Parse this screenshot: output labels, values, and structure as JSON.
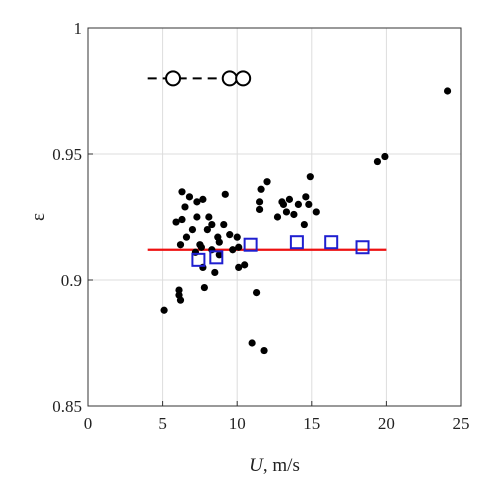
{
  "chart_data": {
    "type": "scatter",
    "title": "",
    "xlabel_var": "U",
    "xlabel_unit": ", m/s",
    "ylabel": "ε",
    "xlim": [
      0,
      25
    ],
    "ylim": [
      0.85,
      1.0
    ],
    "x_ticks": [
      0,
      5,
      10,
      15,
      20,
      25
    ],
    "y_ticks": [
      0.85,
      0.9,
      0.95,
      1
    ],
    "x_tick_labels": [
      "0",
      "5",
      "10",
      "15",
      "20",
      "25"
    ],
    "y_tick_labels": [
      "0.85",
      "0.9",
      "0.95",
      "1"
    ],
    "grid": true,
    "colors": {
      "dots": "#000000",
      "squares": "#1f1fd0",
      "fit_line": "#ee1111",
      "grid": "#dddddd",
      "axes": "#333333"
    },
    "series": [
      {
        "kind": "dots",
        "points": [
          [
            5.1,
            0.888
          ],
          [
            5.9,
            0.923
          ],
          [
            6.1,
            0.896
          ],
          [
            6.1,
            0.894
          ],
          [
            6.2,
            0.892
          ],
          [
            6.2,
            0.914
          ],
          [
            6.3,
            0.935
          ],
          [
            6.3,
            0.924
          ],
          [
            6.5,
            0.929
          ],
          [
            6.6,
            0.917
          ],
          [
            6.8,
            0.933
          ],
          [
            7.0,
            0.92
          ],
          [
            7.2,
            0.911
          ],
          [
            7.3,
            0.931
          ],
          [
            7.3,
            0.925
          ],
          [
            7.5,
            0.914
          ],
          [
            7.6,
            0.913
          ],
          [
            7.7,
            0.932
          ],
          [
            7.7,
            0.905
          ],
          [
            7.8,
            0.897
          ],
          [
            8.0,
            0.92
          ],
          [
            8.1,
            0.925
          ],
          [
            8.3,
            0.912
          ],
          [
            8.3,
            0.922
          ],
          [
            8.5,
            0.903
          ],
          [
            8.7,
            0.917
          ],
          [
            8.8,
            0.915
          ],
          [
            8.8,
            0.91
          ],
          [
            9.1,
            0.922
          ],
          [
            9.2,
            0.934
          ],
          [
            9.5,
            0.918
          ],
          [
            9.7,
            0.912
          ],
          [
            10.0,
            0.917
          ],
          [
            10.1,
            0.913
          ],
          [
            10.1,
            0.905
          ],
          [
            10.5,
            0.906
          ],
          [
            11.0,
            0.875
          ],
          [
            11.3,
            0.895
          ],
          [
            11.5,
            0.931
          ],
          [
            11.5,
            0.928
          ],
          [
            11.6,
            0.936
          ],
          [
            11.8,
            0.872
          ],
          [
            12.0,
            0.939
          ],
          [
            12.7,
            0.925
          ],
          [
            13.0,
            0.931
          ],
          [
            13.1,
            0.93
          ],
          [
            13.3,
            0.927
          ],
          [
            13.5,
            0.932
          ],
          [
            13.8,
            0.926
          ],
          [
            14.1,
            0.93
          ],
          [
            14.5,
            0.922
          ],
          [
            14.6,
            0.933
          ],
          [
            14.8,
            0.93
          ],
          [
            14.9,
            0.941
          ],
          [
            15.3,
            0.927
          ],
          [
            19.4,
            0.947
          ],
          [
            19.9,
            0.949
          ],
          [
            24.1,
            0.975
          ]
        ]
      },
      {
        "kind": "squares",
        "points": [
          [
            7.4,
            0.908
          ],
          [
            8.6,
            0.909
          ],
          [
            10.9,
            0.914
          ],
          [
            14.0,
            0.915
          ],
          [
            16.3,
            0.915
          ],
          [
            18.4,
            0.913
          ]
        ]
      },
      {
        "kind": "fit_line",
        "points": [
          [
            4.0,
            0.912
          ],
          [
            20.0,
            0.912
          ]
        ]
      },
      {
        "kind": "legend_marker",
        "dashed": true,
        "line": [
          [
            4.0,
            0.98
          ],
          [
            10.5,
            0.98
          ]
        ],
        "circles": [
          [
            5.7,
            0.98
          ],
          [
            9.5,
            0.98
          ],
          [
            10.4,
            0.98
          ]
        ]
      }
    ]
  }
}
